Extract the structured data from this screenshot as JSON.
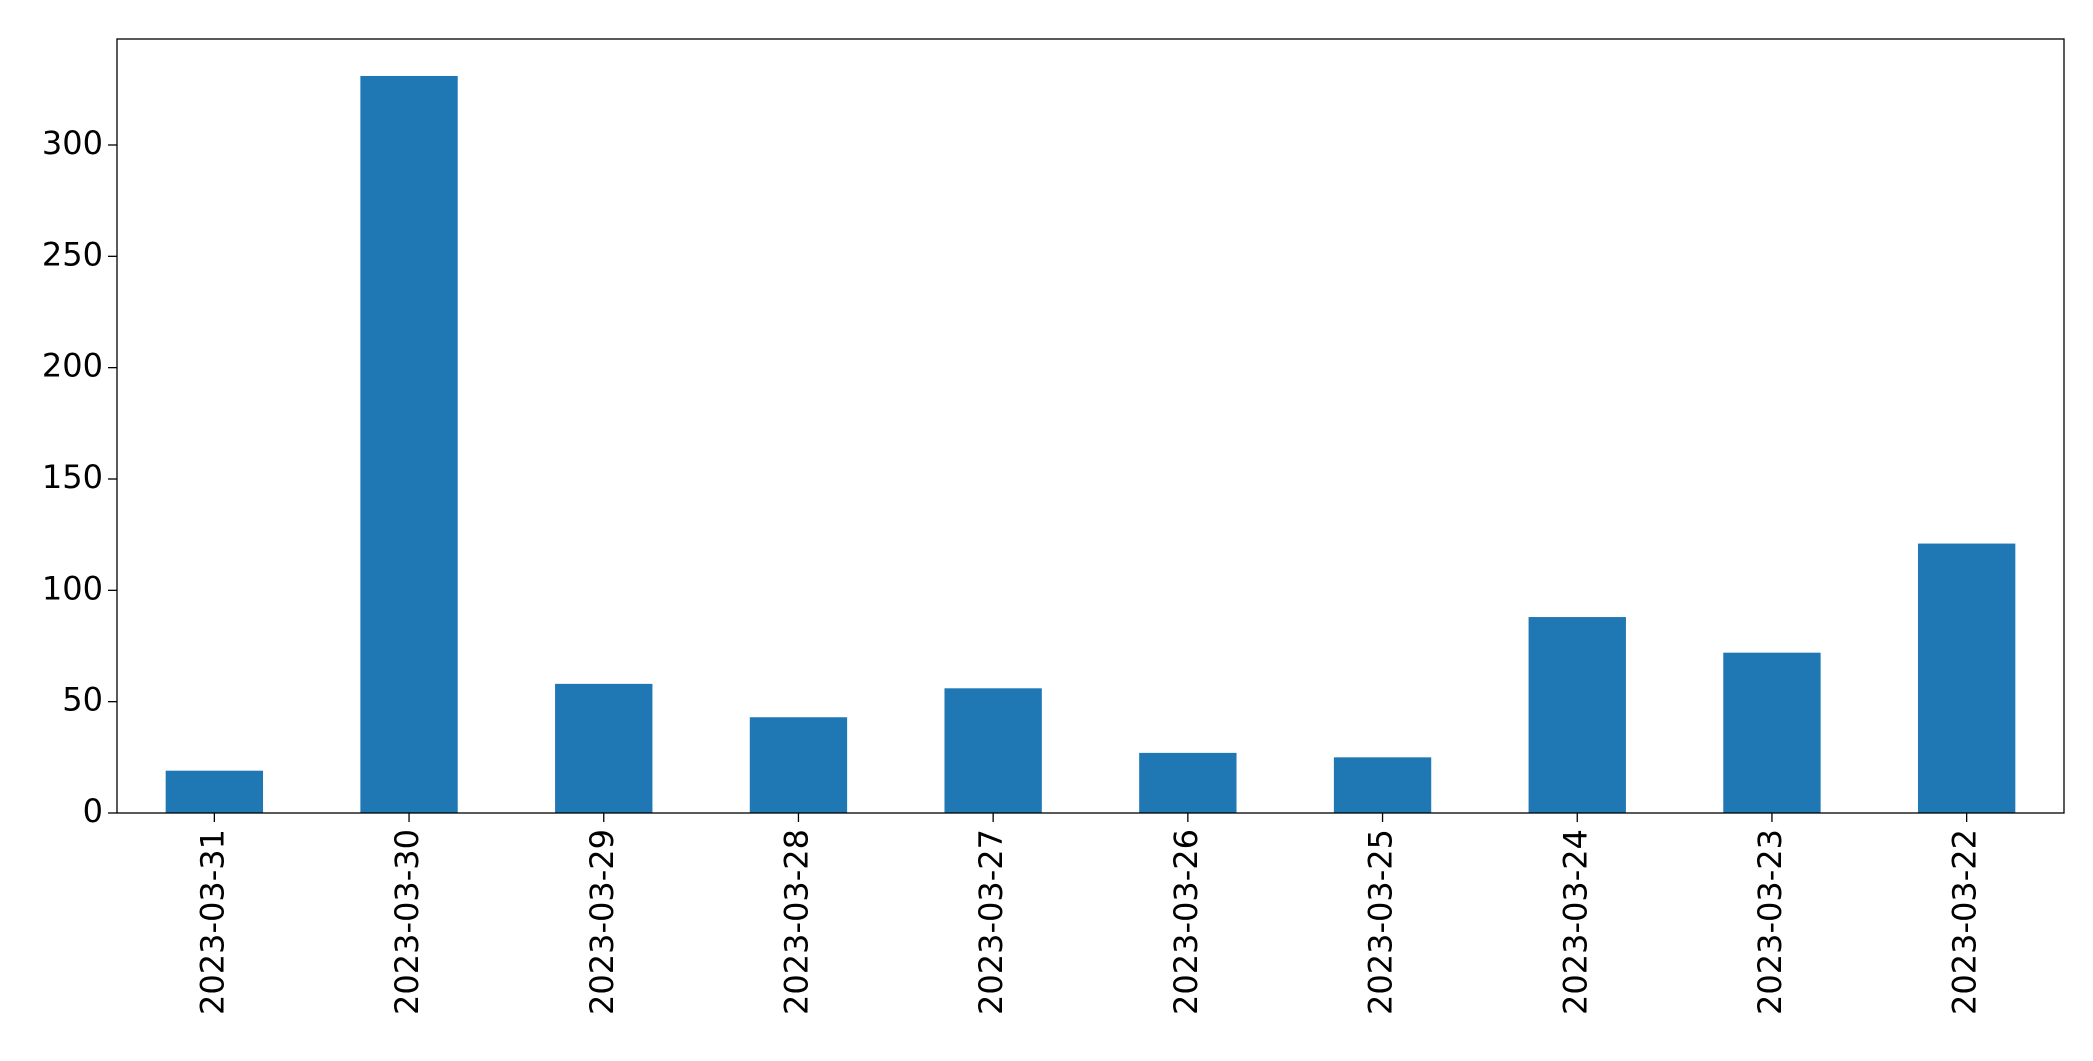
{
  "chart_data": {
    "type": "bar",
    "categories": [
      "2023-03-31",
      "2023-03-30",
      "2023-03-29",
      "2023-03-28",
      "2023-03-27",
      "2023-03-26",
      "2023-03-25",
      "2023-03-24",
      "2023-03-23",
      "2023-03-22"
    ],
    "values": [
      19,
      331,
      58,
      43,
      56,
      27,
      25,
      88,
      72,
      121
    ],
    "color": "#1f77b4",
    "ylim": [
      0,
      347.6
    ],
    "yticks": [
      0,
      50,
      100,
      150,
      200,
      250,
      300
    ],
    "grid": false
  }
}
